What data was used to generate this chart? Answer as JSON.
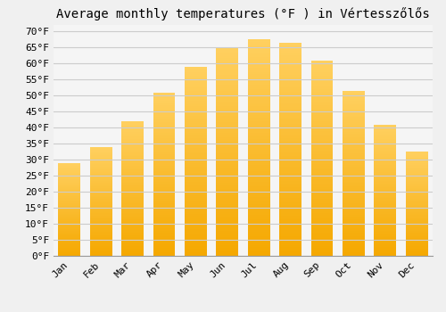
{
  "title": "Average monthly temperatures (°F ) in Vértesszőlős",
  "months": [
    "Jan",
    "Feb",
    "Mar",
    "Apr",
    "May",
    "Jun",
    "Jul",
    "Aug",
    "Sep",
    "Oct",
    "Nov",
    "Dec"
  ],
  "values": [
    29,
    34,
    42,
    51,
    59,
    65,
    67.5,
    66.5,
    61,
    51.5,
    41,
    32.5
  ],
  "bar_color_top": "#FFC84A",
  "bar_color_bottom": "#F5A800",
  "background_color": "#F0F0F0",
  "plot_bg_color": "#F5F5F5",
  "grid_color": "#CCCCCC",
  "ylim": [
    0,
    72
  ],
  "yticks": [
    0,
    5,
    10,
    15,
    20,
    25,
    30,
    35,
    40,
    45,
    50,
    55,
    60,
    65,
    70
  ],
  "title_fontsize": 10,
  "tick_fontsize": 8,
  "figsize": [
    5.0,
    3.5
  ],
  "dpi": 100
}
